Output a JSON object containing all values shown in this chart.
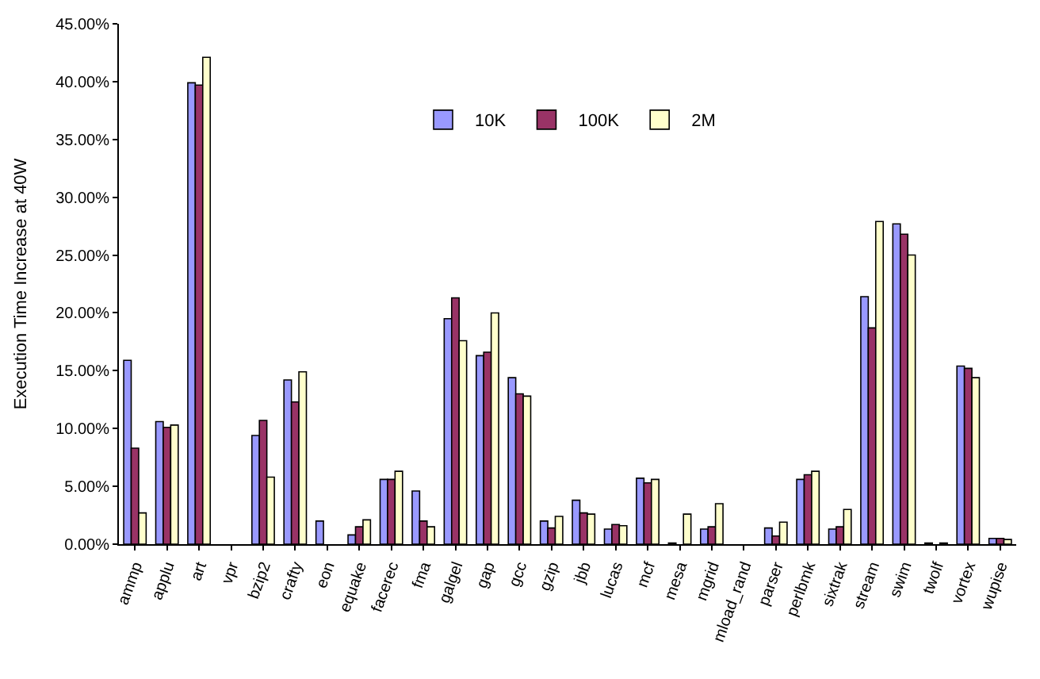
{
  "chart_data": {
    "type": "bar",
    "ylabel": "Execution Time Increase at 40W",
    "categories": [
      "ammp",
      "applu",
      "art",
      "vpr",
      "bzip2",
      "crafty",
      "eon",
      "equake",
      "facerec",
      "fma",
      "galgel",
      "gap",
      "gcc",
      "gzip",
      "jbb",
      "lucas",
      "mcf",
      "mesa",
      "mgrid",
      "mload_rand",
      "parser",
      "perlbmk",
      "sixtrak",
      "stream",
      "swim",
      "twolf",
      "vortex",
      "wupise"
    ],
    "series": [
      {
        "name": "10K",
        "color": "#9999ff",
        "values": [
          15.9,
          10.6,
          39.9,
          null,
          9.4,
          14.2,
          2.0,
          0.8,
          5.6,
          4.6,
          19.5,
          16.3,
          14.4,
          2.0,
          3.8,
          1.3,
          5.7,
          0.1,
          1.3,
          null,
          1.4,
          5.6,
          1.3,
          21.4,
          27.7,
          0.1,
          15.4,
          0.5
        ]
      },
      {
        "name": "100K",
        "color": "#993366",
        "values": [
          8.3,
          10.1,
          39.7,
          null,
          10.7,
          12.3,
          null,
          1.5,
          5.6,
          2.0,
          21.3,
          16.6,
          13.0,
          1.4,
          2.7,
          1.7,
          5.3,
          null,
          1.5,
          null,
          0.7,
          6.0,
          1.5,
          18.7,
          26.8,
          null,
          15.2,
          0.5
        ]
      },
      {
        "name": "2M",
        "color": "#ffffcc",
        "values": [
          2.7,
          10.3,
          42.1,
          null,
          5.8,
          14.9,
          null,
          2.1,
          6.3,
          1.5,
          17.6,
          20.0,
          12.8,
          2.4,
          2.6,
          1.6,
          5.6,
          2.6,
          3.5,
          null,
          1.9,
          6.3,
          3.0,
          27.9,
          25.0,
          0.1,
          14.4,
          0.4
        ]
      }
    ],
    "ylim": [
      0,
      45
    ],
    "yticks": [
      {
        "value": 0,
        "label": "0.00%"
      },
      {
        "value": 5,
        "label": "5.00%"
      },
      {
        "value": 10,
        "label": "10.00%"
      },
      {
        "value": 15,
        "label": "15.00%"
      },
      {
        "value": 20,
        "label": "20.00%"
      },
      {
        "value": 25,
        "label": "25.00%"
      },
      {
        "value": 30,
        "label": "30.00%"
      },
      {
        "value": 35,
        "label": "35.00%"
      },
      {
        "value": 40,
        "label": "40.00%"
      },
      {
        "value": 45,
        "label": "45.00%"
      }
    ],
    "grid": false,
    "legend": "top"
  }
}
